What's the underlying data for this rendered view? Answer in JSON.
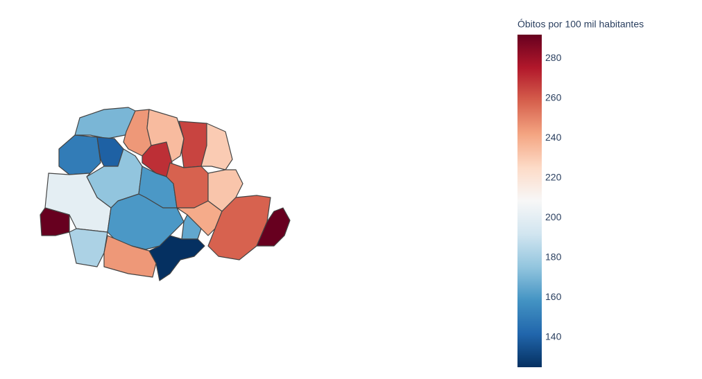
{
  "chart_data": {
    "type": "choropleth",
    "colorbar_title": "Óbitos por 100 mil habitantes",
    "zlim": [
      125,
      292
    ],
    "zticks": [
      140,
      160,
      180,
      200,
      220,
      240,
      260,
      280
    ],
    "colorscale": [
      "#053061",
      "#2166ac",
      "#4393c3",
      "#92c5de",
      "#d1e5f0",
      "#f7f7f7",
      "#fddbc7",
      "#f4a582",
      "#d6604d",
      "#b2182b",
      "#67001f"
    ],
    "border_color": "#444444",
    "values": [
      170,
      150,
      140,
      245,
      235,
      265,
      230,
      270,
      175,
      200,
      292,
      182,
      160,
      258,
      232,
      240,
      160,
      165,
      245,
      125,
      258,
      292
    ]
  }
}
